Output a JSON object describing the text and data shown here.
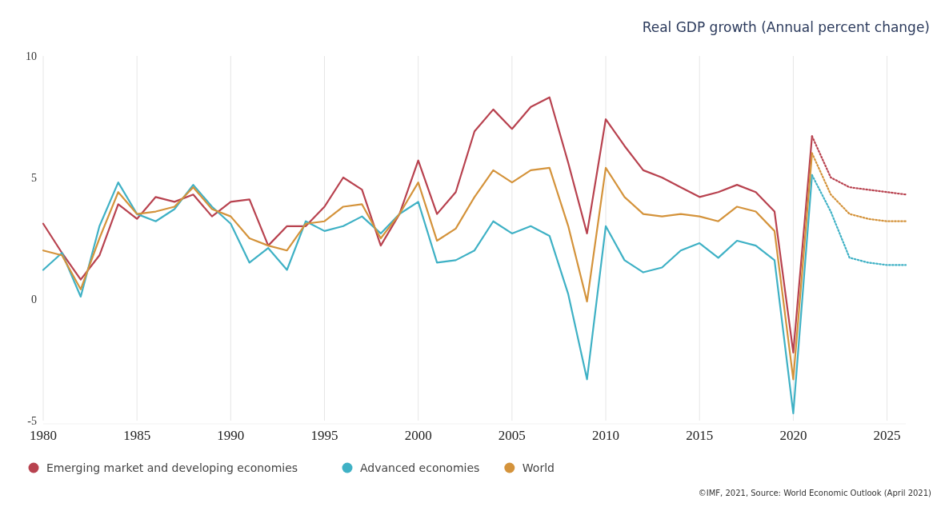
{
  "chart_data": {
    "type": "line",
    "title": "Real GDP growth (Annual percent change)",
    "annotations": [
      "©IMF, 2021, Source: World Economic Outlook (April 2021)"
    ],
    "xlim": [
      1980,
      2026
    ],
    "xticks": [
      1980,
      1985,
      1990,
      1995,
      2000,
      2005,
      2010,
      2015,
      2020,
      2025
    ],
    "ylim": [
      -5,
      10
    ],
    "yticks": [
      -5,
      0,
      5,
      10
    ],
    "grid": "x",
    "legend": "bottom left",
    "marker": "none",
    "series": [
      {
        "name": "Emerging market and developing economies",
        "color": "#b8424f",
        "line_style": "solid",
        "x": [
          1980,
          1981,
          1982,
          1983,
          1984,
          1985,
          1986,
          1987,
          1988,
          1989,
          1990,
          1991,
          1992,
          1993,
          1994,
          1995,
          1996,
          1997,
          1998,
          1999,
          2000,
          2001,
          2002,
          2003,
          2004,
          2005,
          2006,
          2007,
          2008,
          2009,
          2010,
          2011,
          2012,
          2013,
          2014,
          2015,
          2016,
          2017,
          2018,
          2019,
          2020,
          2021
        ],
        "values": [
          3.1,
          1.9,
          0.8,
          1.8,
          3.9,
          3.3,
          4.2,
          4.0,
          4.3,
          3.4,
          4.0,
          4.1,
          2.2,
          3.0,
          3.0,
          3.8,
          5.0,
          4.5,
          2.2,
          3.5,
          5.7,
          3.5,
          4.4,
          6.9,
          7.8,
          7.0,
          7.9,
          8.3,
          5.6,
          2.7,
          7.4,
          6.3,
          5.3,
          5.0,
          4.6,
          4.2,
          4.4,
          4.7,
          4.4,
          3.6,
          -2.2,
          6.7
        ]
      },
      {
        "name": "Advanced economies",
        "color": "#3fb1c5",
        "line_style": "solid",
        "x": [
          1980,
          1981,
          1982,
          1983,
          1984,
          1985,
          1986,
          1987,
          1988,
          1989,
          1990,
          1991,
          1992,
          1993,
          1994,
          1995,
          1996,
          1997,
          1998,
          1999,
          2000,
          2001,
          2002,
          2003,
          2004,
          2005,
          2006,
          2007,
          2008,
          2009,
          2010,
          2011,
          2012,
          2013,
          2014,
          2015,
          2016,
          2017,
          2018,
          2019,
          2020,
          2021
        ],
        "values": [
          1.2,
          1.9,
          0.1,
          3.0,
          4.8,
          3.5,
          3.2,
          3.7,
          4.7,
          3.8,
          3.1,
          1.5,
          2.1,
          1.2,
          3.2,
          2.8,
          3.0,
          3.4,
          2.7,
          3.5,
          4.0,
          1.5,
          1.6,
          2.0,
          3.2,
          2.7,
          3.0,
          2.6,
          0.2,
          -3.3,
          3.0,
          1.6,
          1.1,
          1.3,
          2.0,
          2.3,
          1.7,
          2.4,
          2.2,
          1.6,
          -4.7,
          5.1
        ]
      },
      {
        "name": "World",
        "color": "#d4933b",
        "line_style": "solid",
        "x": [
          1980,
          1981,
          1982,
          1983,
          1984,
          1985,
          1986,
          1987,
          1988,
          1989,
          1990,
          1991,
          1992,
          1993,
          1994,
          1995,
          1996,
          1997,
          1998,
          1999,
          2000,
          2001,
          2002,
          2003,
          2004,
          2005,
          2006,
          2007,
          2008,
          2009,
          2010,
          2011,
          2012,
          2013,
          2014,
          2015,
          2016,
          2017,
          2018,
          2019,
          2020,
          2021
        ],
        "values": [
          2.0,
          1.8,
          0.4,
          2.5,
          4.4,
          3.5,
          3.6,
          3.8,
          4.6,
          3.7,
          3.4,
          2.5,
          2.2,
          2.0,
          3.1,
          3.2,
          3.8,
          3.9,
          2.5,
          3.5,
          4.8,
          2.4,
          2.9,
          4.2,
          5.3,
          4.8,
          5.3,
          5.4,
          3.0,
          -0.1,
          5.4,
          4.2,
          3.5,
          3.4,
          3.5,
          3.4,
          3.2,
          3.8,
          3.6,
          2.8,
          -3.3,
          6.0
        ]
      },
      {
        "color": "#b8424f",
        "line_style": "dotted",
        "x": [
          2021,
          2022,
          2023,
          2024,
          2025,
          2026
        ],
        "values": [
          6.7,
          5.0,
          4.6,
          4.5,
          4.4,
          4.3
        ]
      },
      {
        "color": "#3fb1c5",
        "line_style": "dotted",
        "x": [
          2021,
          2022,
          2023,
          2024,
          2025,
          2026
        ],
        "values": [
          5.1,
          3.6,
          1.7,
          1.5,
          1.4,
          1.4
        ]
      },
      {
        "color": "#d4933b",
        "line_style": "dotted",
        "x": [
          2021,
          2022,
          2023,
          2024,
          2025,
          2026
        ],
        "values": [
          6.0,
          4.3,
          3.5,
          3.3,
          3.2,
          3.2
        ]
      }
    ]
  }
}
